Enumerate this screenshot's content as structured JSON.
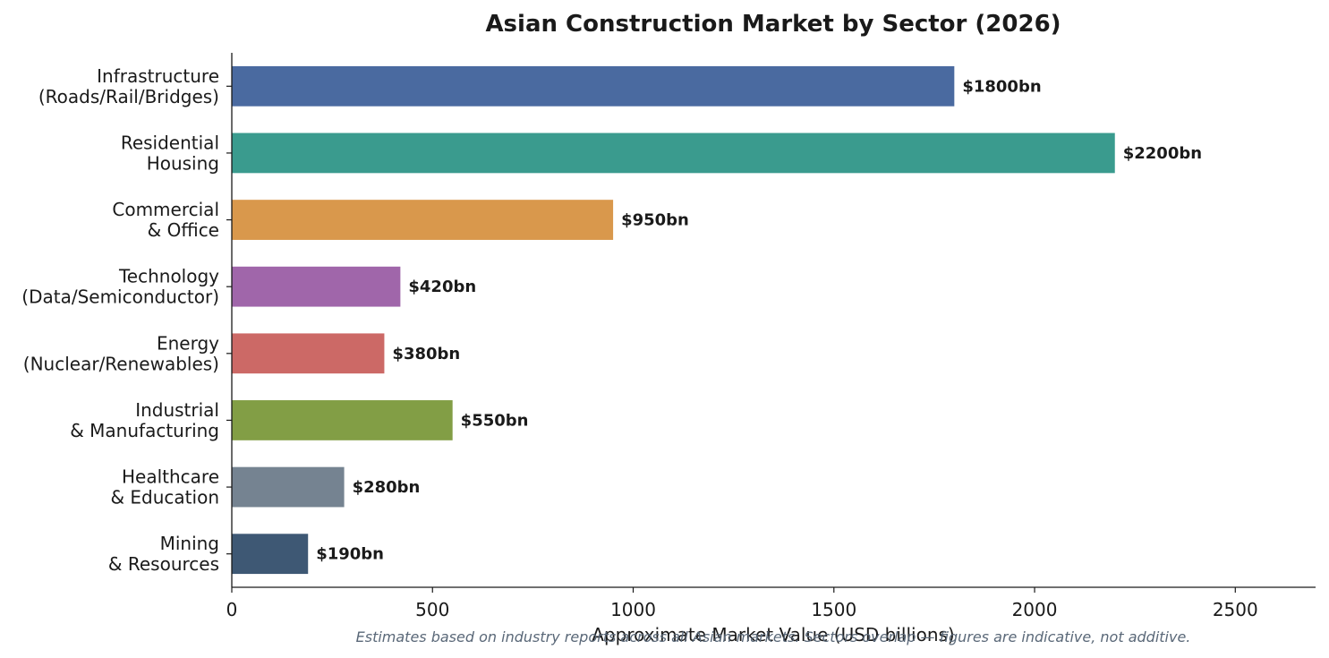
{
  "chart_data": {
    "type": "bar",
    "orientation": "horizontal",
    "title": "Asian Construction Market by Sector (2026)",
    "xlabel": "Approximate Market Value (USD billions)",
    "ylabel": "",
    "xlim": [
      0,
      2700
    ],
    "xticks": [
      0,
      500,
      1000,
      1500,
      2000,
      2500
    ],
    "grid": false,
    "categories": [
      [
        "Infrastructure",
        "(Roads/Rail/Bridges)"
      ],
      [
        "Residential",
        "Housing"
      ],
      [
        "Commercial",
        "& Office"
      ],
      [
        "Technology",
        "(Data/Semiconductor)"
      ],
      [
        "Energy",
        "(Nuclear/Renewables)"
      ],
      [
        "Industrial",
        "& Manufacturing"
      ],
      [
        "Healthcare",
        "& Education"
      ],
      [
        "Mining",
        "& Resources"
      ]
    ],
    "values": [
      1800,
      2200,
      950,
      420,
      380,
      550,
      280,
      190
    ],
    "value_labels": [
      "$1800bn",
      "$2200bn",
      "$950bn",
      "$420bn",
      "$380bn",
      "$550bn",
      "$280bn",
      "$190bn"
    ],
    "colors": [
      "#4a6aa0",
      "#3a9b8e",
      "#d9984c",
      "#a066aa",
      "#cc6966",
      "#829e45",
      "#758391",
      "#3e5874"
    ],
    "footnote": "Estimates based on industry reports across all Asian markets. Sectors overlap — figures are indicative, not additive."
  }
}
